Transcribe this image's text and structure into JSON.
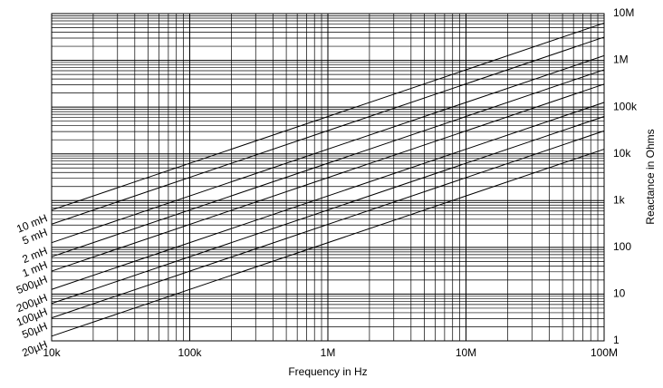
{
  "chart_data": {
    "type": "line",
    "xlabel": "Frequency in Hz",
    "ylabel": "Reactance in Ohms",
    "xscale": "log",
    "yscale": "log",
    "xlim": [
      10000,
      100000000
    ],
    "ylim": [
      1,
      10000000
    ],
    "xticks": [
      {
        "value": 10000,
        "label": "10k"
      },
      {
        "value": 100000,
        "label": "100k"
      },
      {
        "value": 1000000,
        "label": "1M"
      },
      {
        "value": 10000000,
        "label": "10M"
      },
      {
        "value": 100000000,
        "label": "100M"
      }
    ],
    "yticks": [
      1,
      10,
      100,
      {
        "value": 1000,
        "label": "1k"
      },
      {
        "value": 10000,
        "label": "10k"
      },
      {
        "value": 100000,
        "label": "100k"
      },
      {
        "value": 1000000,
        "label": "1M"
      },
      {
        "value": 10000000,
        "label": "10M"
      }
    ],
    "grid": true,
    "minor_grid": true,
    "color": "#000000",
    "series": [
      {
        "name": "10 mH",
        "x": [
          10000,
          100000000
        ],
        "values": [
          628,
          6280000
        ]
      },
      {
        "name": "5 mH",
        "x": [
          10000,
          100000000
        ],
        "values": [
          314,
          3140000
        ]
      },
      {
        "name": "2 mH",
        "x": [
          10000,
          100000000
        ],
        "values": [
          126,
          1260000
        ]
      },
      {
        "name": "1 mH",
        "x": [
          10000,
          100000000
        ],
        "values": [
          63,
          630000
        ]
      },
      {
        "name": "500µH",
        "x": [
          10000,
          100000000
        ],
        "values": [
          31,
          310000
        ]
      },
      {
        "name": "200µH",
        "x": [
          10000,
          100000000
        ],
        "values": [
          12.6,
          126000
        ]
      },
      {
        "name": "100µH",
        "x": [
          10000,
          100000000
        ],
        "values": [
          6.3,
          63000
        ]
      },
      {
        "name": "50µH",
        "x": [
          10000,
          100000000
        ],
        "values": [
          3.1,
          31000
        ]
      },
      {
        "name": "20µH",
        "x": [
          10000,
          100000000
        ],
        "values": [
          1.26,
          12600
        ]
      }
    ]
  }
}
